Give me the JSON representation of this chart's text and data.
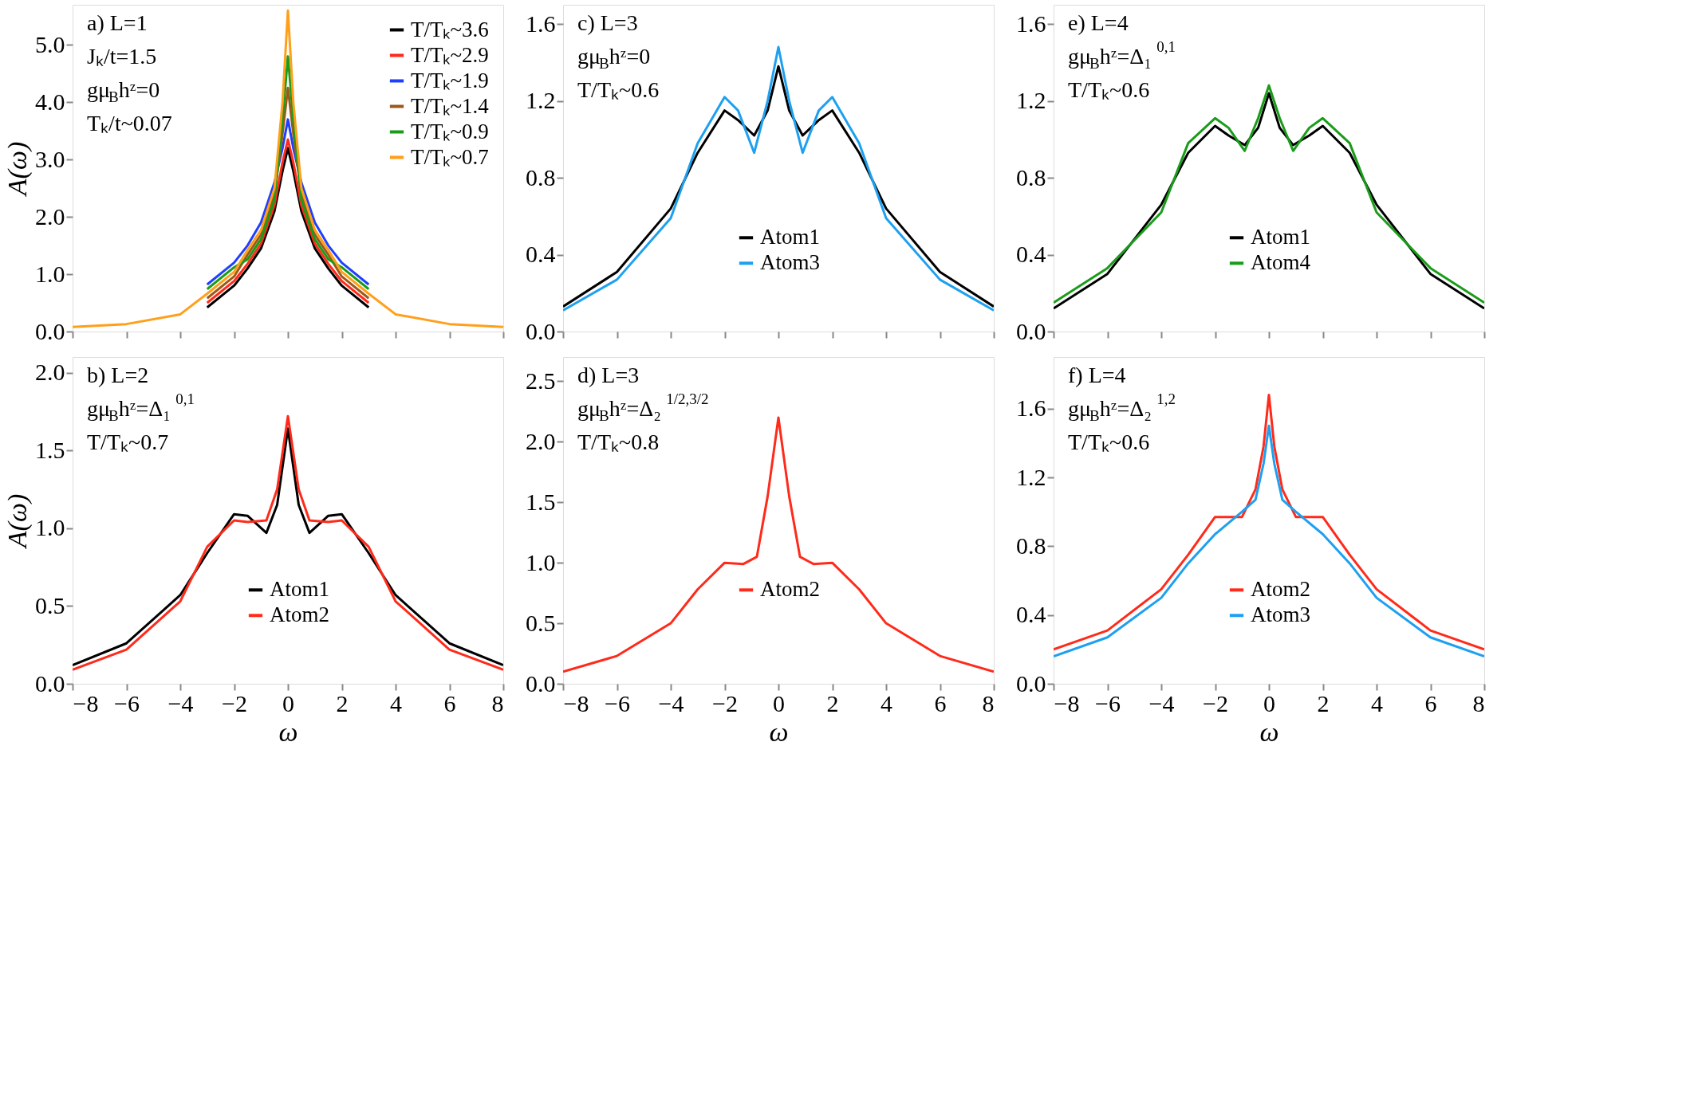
{
  "chart_data": [
    {
      "type": "line",
      "ylabel": "A(ω)",
      "xlim": [
        -8,
        8
      ],
      "xticks": [
        -8,
        -6,
        -4,
        -2,
        0,
        2,
        4,
        6,
        8
      ],
      "ylim": [
        0,
        5.7
      ],
      "yticks": [
        {
          "value": 0,
          "label": "0.0"
        },
        {
          "value": 1,
          "label": "1.0"
        },
        {
          "value": 2,
          "label": "2.0"
        },
        {
          "value": 3,
          "label": "3.0"
        },
        {
          "value": 4,
          "label": "4.0"
        },
        {
          "value": 5,
          "label": "5.0"
        }
      ],
      "tick_labels": "y",
      "grid": false,
      "legend": "top right",
      "annotations": [
        "a) L=1",
        "Jₖ/t=1.5",
        "gμ$_{B}$hᶻ=0",
        "Tₖ/t~0.07"
      ],
      "x": [
        -8,
        -6,
        -4,
        -3,
        -2,
        -1.5,
        -1,
        -0.5,
        -0.2,
        0,
        0.2,
        0.5,
        1,
        1.5,
        2,
        3,
        4,
        6,
        8
      ],
      "series": [
        {
          "name": "T/Tₖ~3.6",
          "color": "#000000",
          "values": [
            null,
            null,
            null,
            0.42,
            0.8,
            1.1,
            1.45,
            2.1,
            2.8,
            3.2,
            2.8,
            2.1,
            1.45,
            1.1,
            0.8,
            0.42,
            null,
            null,
            null
          ]
        },
        {
          "name": "T/Tₖ~2.9",
          "color": "#ff2a1a",
          "values": [
            null,
            null,
            null,
            0.5,
            0.88,
            1.18,
            1.53,
            2.2,
            2.95,
            3.35,
            2.95,
            2.2,
            1.53,
            1.18,
            0.88,
            0.5,
            null,
            null,
            null
          ]
        },
        {
          "name": "T/Tₖ~1.9",
          "color": "#1f3fff",
          "values": [
            null,
            null,
            null,
            0.82,
            1.2,
            1.5,
            1.9,
            2.6,
            3.2,
            3.7,
            3.2,
            2.6,
            1.9,
            1.5,
            1.2,
            0.82,
            null,
            null,
            null
          ]
        },
        {
          "name": "T/Tₖ~1.4",
          "color": "#9c5a1a",
          "values": [
            null,
            null,
            null,
            0.58,
            0.96,
            1.34,
            1.69,
            2.4,
            3.45,
            4.25,
            3.45,
            2.4,
            1.69,
            1.34,
            0.96,
            0.58,
            null,
            null,
            null
          ]
        },
        {
          "name": "T/Tₖ~0.9",
          "color": "#1a9c1a",
          "values": [
            null,
            null,
            null,
            0.74,
            1.12,
            1.26,
            1.61,
            2.3,
            3.7,
            4.8,
            3.7,
            2.3,
            1.61,
            1.26,
            1.12,
            0.74,
            null,
            null,
            null
          ]
        },
        {
          "name": "T/Tₖ~0.7",
          "color": "#ff9f1a",
          "values": [
            0.08,
            0.13,
            0.3,
            0.66,
            1.04,
            1.42,
            1.77,
            2.5,
            4.0,
            5.6,
            4.0,
            2.5,
            1.77,
            1.42,
            1.04,
            0.66,
            0.3,
            0.13,
            0.08
          ]
        }
      ]
    },
    {
      "type": "line",
      "xlim": [
        -8,
        8
      ],
      "xticks": [
        -8,
        -6,
        -4,
        -2,
        0,
        2,
        4,
        6,
        8
      ],
      "ylim": [
        0,
        1.7
      ],
      "yticks": [
        {
          "value": 0,
          "label": "0.0"
        },
        0.4,
        0.8,
        1.2,
        1.6
      ],
      "tick_labels": "y",
      "grid": false,
      "legend": "bottom",
      "annotations": [
        "c) L=3",
        "gμ$_{B}$hᶻ=0",
        "T/Tₖ~0.6"
      ],
      "x": [
        -8,
        -6,
        -4,
        -3,
        -2,
        -1.5,
        -0.9,
        -0.4,
        0,
        0.4,
        0.9,
        1.5,
        2,
        3,
        4,
        6,
        8
      ],
      "series": [
        {
          "name": "Atom1",
          "color": "#000000",
          "values": [
            0.13,
            0.31,
            0.64,
            0.93,
            1.15,
            1.1,
            1.02,
            1.15,
            1.38,
            1.15,
            1.02,
            1.1,
            1.15,
            0.93,
            0.64,
            0.31,
            0.13
          ]
        },
        {
          "name": "Atom3",
          "color": "#1ea0f0",
          "values": [
            0.11,
            0.27,
            0.59,
            0.98,
            1.22,
            1.15,
            0.93,
            1.2,
            1.48,
            1.2,
            0.93,
            1.15,
            1.22,
            0.98,
            0.59,
            0.27,
            0.11
          ]
        }
      ]
    },
    {
      "type": "line",
      "xlim": [
        -8,
        8
      ],
      "xticks": [
        -8,
        -6,
        -4,
        -2,
        0,
        2,
        4,
        6,
        8
      ],
      "ylim": [
        0,
        1.7
      ],
      "yticks": [
        {
          "value": 0,
          "label": "0.0"
        },
        0.4,
        0.8,
        1.2,
        1.6
      ],
      "tick_labels": "y",
      "grid": false,
      "legend": "bottom",
      "annotations": [
        "e) L=4",
        "gμ$_{B}$hᶻ=Δ₁$^{0,1}$",
        "T/Tₖ~0.6"
      ],
      "x": [
        -8,
        -6,
        -4,
        -3,
        -2,
        -1.5,
        -0.9,
        -0.4,
        0,
        0.4,
        0.9,
        1.5,
        2,
        3,
        4,
        6,
        8
      ],
      "series": [
        {
          "name": "Atom1",
          "color": "#000000",
          "values": [
            0.12,
            0.3,
            0.66,
            0.93,
            1.07,
            1.02,
            0.97,
            1.06,
            1.24,
            1.06,
            0.97,
            1.02,
            1.07,
            0.93,
            0.66,
            0.3,
            0.12
          ]
        },
        {
          "name": "Atom4",
          "color": "#1a9c1a",
          "values": [
            0.15,
            0.33,
            0.62,
            0.98,
            1.11,
            1.06,
            0.94,
            1.11,
            1.28,
            1.11,
            0.94,
            1.06,
            1.11,
            0.98,
            0.62,
            0.33,
            0.15
          ]
        }
      ]
    },
    {
      "type": "line",
      "xlabel": "ω",
      "ylabel": "A(ω)",
      "xlim": [
        -8,
        8
      ],
      "xticks": [
        -8,
        -6,
        -4,
        -2,
        0,
        2,
        4,
        6,
        8
      ],
      "ylim": [
        0,
        2.1
      ],
      "yticks": [
        {
          "value": 0,
          "label": "0.0"
        },
        0.5,
        {
          "value": 1,
          "label": "1.0"
        },
        1.5,
        {
          "value": 2,
          "label": "2.0"
        }
      ],
      "grid": false,
      "legend": "bottom",
      "annotations": [
        "b) L=2",
        "gμ$_{B}$hᶻ=Δ₁$^{0,1}$",
        "T/Tₖ~0.7"
      ],
      "x": [
        -8,
        -6,
        -4,
        -3,
        -2,
        -1.5,
        -0.8,
        -0.4,
        0,
        0.4,
        0.8,
        1.5,
        2,
        3,
        4,
        6,
        8
      ],
      "series": [
        {
          "name": "Atom1",
          "color": "#000000",
          "values": [
            0.12,
            0.26,
            0.57,
            0.84,
            1.09,
            1.08,
            0.97,
            1.15,
            1.64,
            1.15,
            0.97,
            1.08,
            1.09,
            0.84,
            0.57,
            0.26,
            0.12
          ]
        },
        {
          "name": "Atom2",
          "color": "#ff2a1a",
          "values": [
            0.09,
            0.22,
            0.53,
            0.88,
            1.05,
            1.04,
            1.05,
            1.25,
            1.72,
            1.25,
            1.05,
            1.04,
            1.05,
            0.88,
            0.53,
            0.22,
            0.09
          ]
        }
      ]
    },
    {
      "type": "line",
      "xlabel": "ω",
      "xlim": [
        -8,
        8
      ],
      "xticks": [
        -8,
        -6,
        -4,
        -2,
        0,
        2,
        4,
        6,
        8
      ],
      "ylim": [
        0,
        2.7
      ],
      "yticks": [
        {
          "value": 0,
          "label": "0.0"
        },
        0.5,
        {
          "value": 1,
          "label": "1.0"
        },
        1.5,
        {
          "value": 2,
          "label": "2.0"
        },
        2.5
      ],
      "grid": false,
      "legend": "bottom",
      "annotations": [
        "d) L=3",
        "gμ$_{B}$hᶻ=Δ₂$^{1/2,3/2}$",
        "T/Tₖ~0.8"
      ],
      "x": [
        -8,
        -6,
        -4,
        -3,
        -2,
        -1.3,
        -0.8,
        -0.4,
        0,
        0.4,
        0.8,
        1.3,
        2,
        3,
        4,
        6,
        8
      ],
      "series": [
        {
          "name": "Atom2",
          "color": "#ff2a1a",
          "values": [
            0.1,
            0.23,
            0.5,
            0.78,
            1.0,
            0.99,
            1.05,
            1.55,
            2.2,
            1.55,
            1.05,
            0.99,
            1.0,
            0.78,
            0.5,
            0.23,
            0.1
          ]
        }
      ]
    },
    {
      "type": "line",
      "xlabel": "ω",
      "xlim": [
        -8,
        8
      ],
      "xticks": [
        -8,
        -6,
        -4,
        -2,
        0,
        2,
        4,
        6,
        8
      ],
      "ylim": [
        0,
        1.9
      ],
      "yticks": [
        {
          "value": 0,
          "label": "0.0"
        },
        0.4,
        0.8,
        1.2,
        1.6
      ],
      "grid": false,
      "legend": "bottom",
      "annotations": [
        "f) L=4",
        "gμ$_{B}$hᶻ=Δ₂$^{1,2}$",
        "T/Tₖ~0.6"
      ],
      "x": [
        -8,
        -6,
        -4,
        -3,
        -2,
        -1,
        -0.5,
        -0.2,
        0,
        0.2,
        0.5,
        1,
        2,
        3,
        4,
        6,
        8
      ],
      "series": [
        {
          "name": "Atom2",
          "color": "#ff2a1a",
          "values": [
            0.2,
            0.31,
            0.55,
            0.75,
            0.97,
            0.97,
            1.13,
            1.38,
            1.68,
            1.38,
            1.13,
            0.97,
            0.97,
            0.75,
            0.55,
            0.31,
            0.2
          ]
        },
        {
          "name": "Atom3",
          "color": "#1ea0f0",
          "values": [
            0.16,
            0.27,
            0.5,
            0.7,
            0.87,
            1.0,
            1.07,
            1.28,
            1.5,
            1.28,
            1.07,
            1.0,
            0.87,
            0.7,
            0.5,
            0.27,
            0.16
          ]
        }
      ]
    }
  ]
}
